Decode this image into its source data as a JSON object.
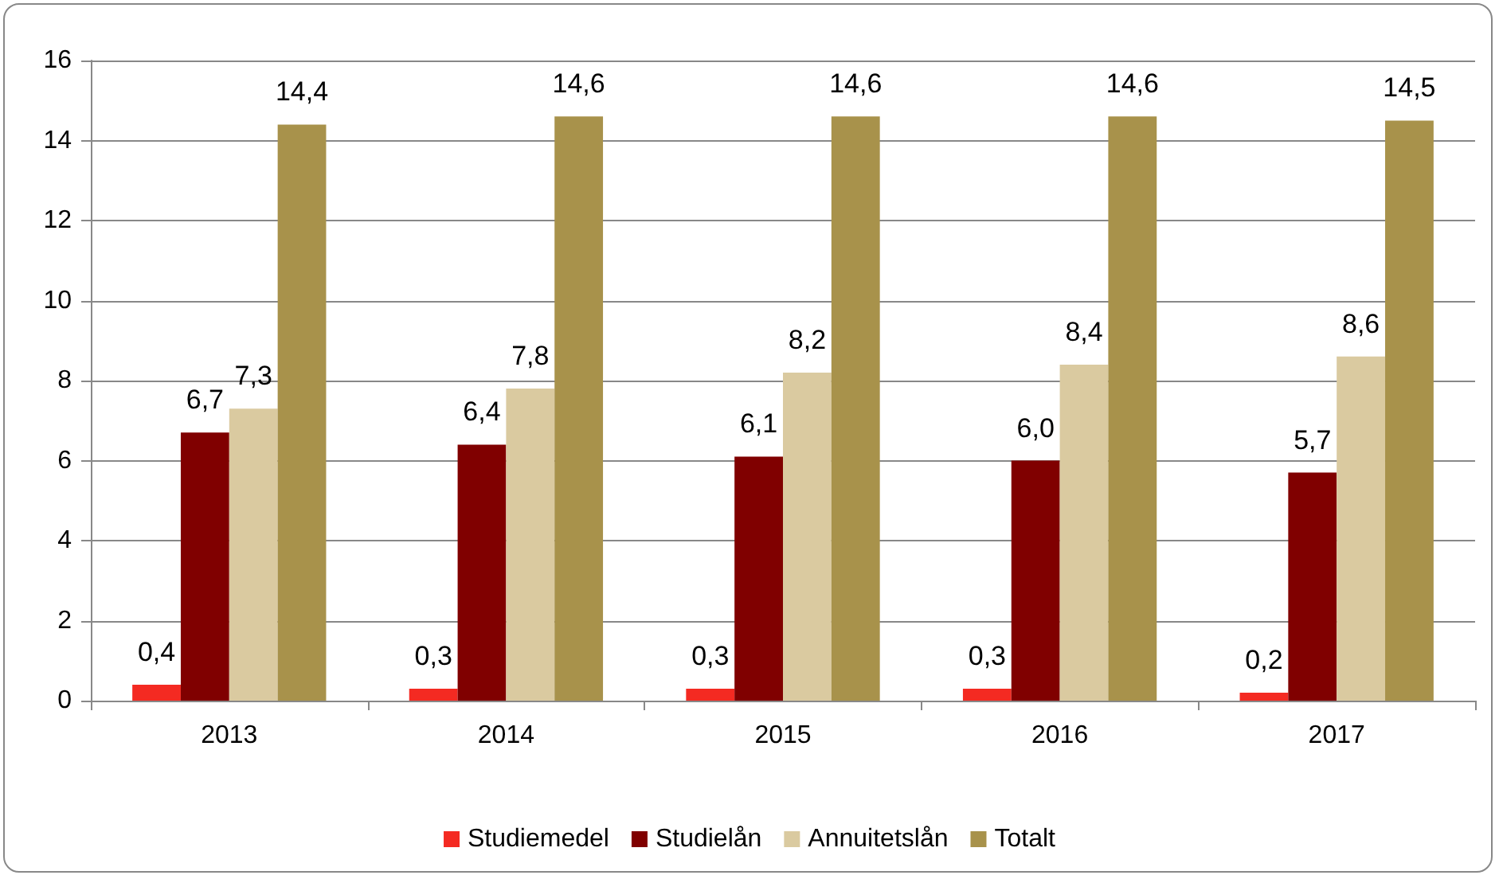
{
  "chart_data": {
    "type": "bar",
    "categories": [
      "2013",
      "2014",
      "2015",
      "2016",
      "2017"
    ],
    "series": [
      {
        "name": "Studiemedel",
        "color": "#f42a22",
        "values": [
          0.4,
          0.3,
          0.3,
          0.3,
          0.2
        ],
        "value_labels": [
          "0,4",
          "0,3",
          "0,3",
          "0,3",
          "0,2"
        ]
      },
      {
        "name": "Studielån",
        "color": "#800000",
        "values": [
          6.7,
          6.4,
          6.1,
          6.0,
          5.7
        ],
        "value_labels": [
          "6,7",
          "6,4",
          "6,1",
          "6,0",
          "5,7"
        ]
      },
      {
        "name": "Annuitetslån",
        "color": "#dacaa0",
        "values": [
          7.3,
          7.8,
          8.2,
          8.4,
          8.6
        ],
        "value_labels": [
          "7,3",
          "7,8",
          "8,2",
          "8,4",
          "8,6"
        ]
      },
      {
        "name": "Totalt",
        "color": "#a8924b",
        "values": [
          14.4,
          14.6,
          14.6,
          14.6,
          14.5
        ],
        "value_labels": [
          "14,4",
          "14,6",
          "14,6",
          "14,6",
          "14,5"
        ]
      }
    ],
    "ylim": [
      0,
      16
    ],
    "yticks": [
      0,
      2,
      4,
      6,
      8,
      10,
      12,
      14,
      16
    ],
    "grid": "y",
    "legend": "bottom"
  }
}
